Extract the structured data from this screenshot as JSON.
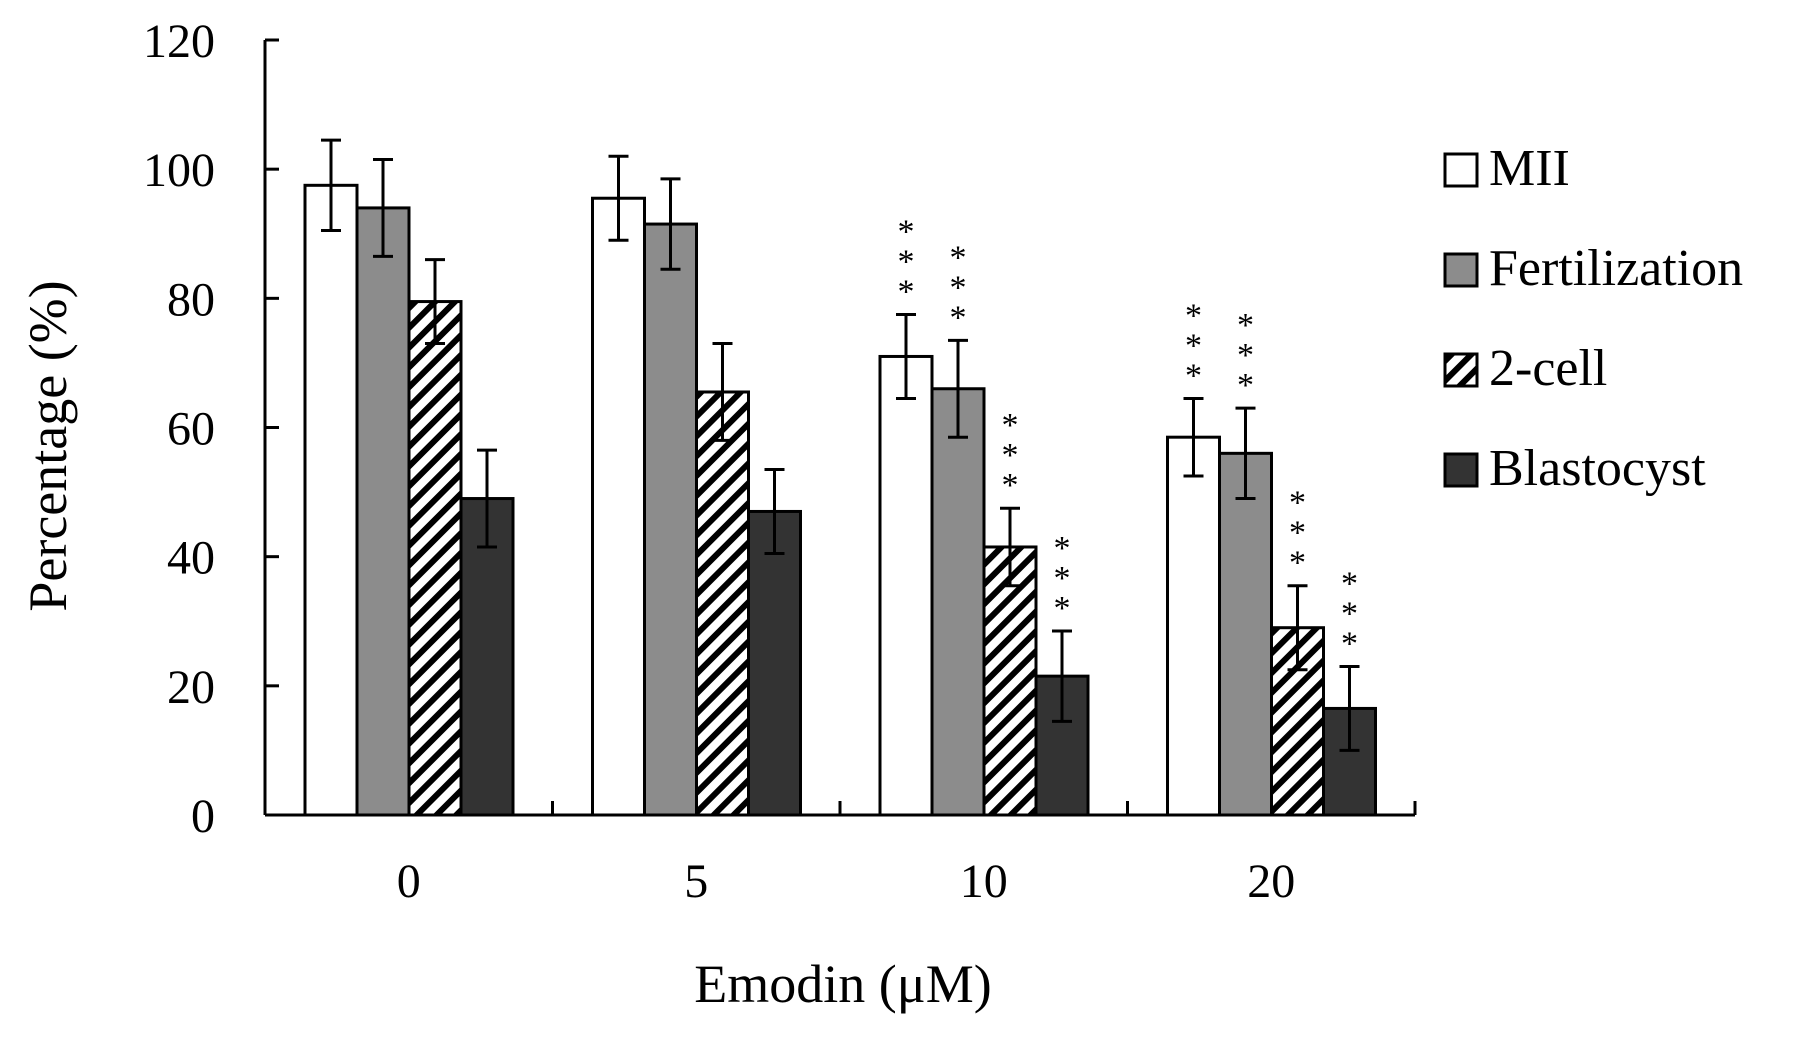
{
  "chart_data": {
    "type": "bar",
    "title": "",
    "xlabel": "Emodin (μM)",
    "ylabel": "Percentage (%)",
    "ylim": [
      0,
      120
    ],
    "yticks": [
      0,
      20,
      40,
      60,
      80,
      100,
      120
    ],
    "categories": [
      "0",
      "5",
      "10",
      "20"
    ],
    "grid": false,
    "legend_position": "right",
    "series": [
      {
        "name": "MII",
        "fill": "white",
        "values": [
          97.5,
          95.5,
          71,
          58.5
        ],
        "errors": [
          7,
          6.5,
          6.5,
          6
        ],
        "significance": [
          "",
          "",
          "***",
          "***"
        ]
      },
      {
        "name": "Fertilization",
        "fill": "gray",
        "values": [
          94,
          91.5,
          66,
          56
        ],
        "errors": [
          7.5,
          7,
          7.5,
          7
        ],
        "significance": [
          "",
          "",
          "***",
          "***"
        ]
      },
      {
        "name": "2-cell",
        "fill": "hatched",
        "values": [
          79.5,
          65.5,
          41.5,
          29
        ],
        "errors": [
          6.5,
          7.5,
          6,
          6.5
        ],
        "significance": [
          "",
          "",
          "***",
          "***"
        ]
      },
      {
        "name": "Blastocyst",
        "fill": "dark",
        "values": [
          49,
          47,
          21.5,
          16.5
        ],
        "errors": [
          7.5,
          6.5,
          7,
          6.5
        ],
        "significance": [
          "",
          "",
          "***",
          "***"
        ]
      }
    ],
    "colors": {
      "white": "#ffffff",
      "gray": "#8c8c8c",
      "dark": "#333333",
      "stroke": "#000000"
    }
  }
}
